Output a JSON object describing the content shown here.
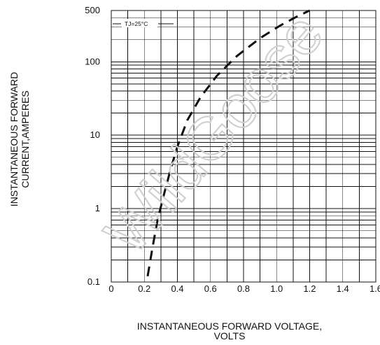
{
  "chart_data": {
    "type": "line",
    "title": "",
    "xlabel": "INSTANTANEOUS FORWARD VOLTAGE,\nVOLTS",
    "ylabel": "INSTANTANEOUS FORWARD\nCURRENT,AMPERES",
    "xlim": [
      0,
      1.6
    ],
    "ylim": [
      0.1,
      500
    ],
    "yscale": "log",
    "grid": true,
    "x_ticks": [
      "0",
      "0.2",
      "0.4",
      "0.6",
      "0.8",
      "1.0",
      "1.2",
      "1.4",
      "1.6"
    ],
    "x_tick_values": [
      0,
      0.2,
      0.4,
      0.6,
      0.8,
      1.0,
      1.2,
      1.4,
      1.6
    ],
    "y_ticks": [
      "0.1",
      "1",
      "10",
      "100",
      "500"
    ],
    "y_tick_values": [
      0.1,
      1,
      10,
      100,
      500
    ],
    "annotation": "TJ=25°C",
    "series": [
      {
        "style": "dashed",
        "x": [
          0.22,
          0.25,
          0.28,
          0.32,
          0.36,
          0.4,
          0.46,
          0.54,
          0.64,
          0.76,
          0.9,
          1.02,
          1.12,
          1.2
        ],
        "y": [
          0.12,
          0.3,
          0.7,
          1.6,
          3.5,
          7,
          16,
          33,
          65,
          120,
          210,
          310,
          410,
          500
        ]
      }
    ]
  },
  "watermark": {
    "text": "WildGoose"
  }
}
